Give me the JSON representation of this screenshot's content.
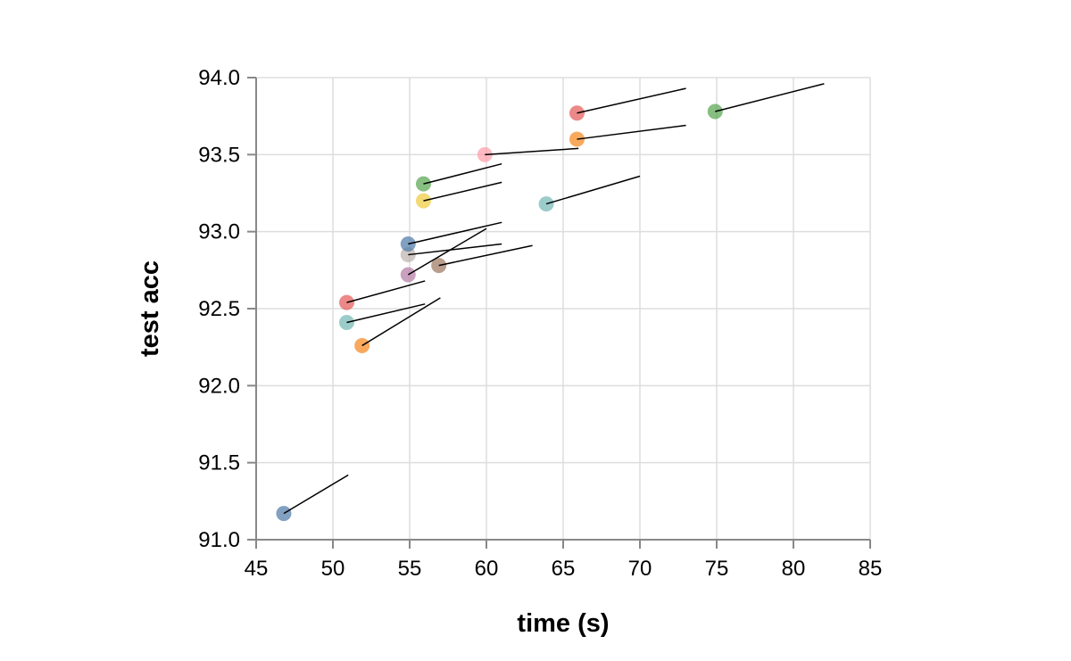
{
  "chart_data": {
    "type": "scatter",
    "title": "",
    "xlabel": "time (s)",
    "ylabel": "test acc",
    "xlim": [
      45,
      85
    ],
    "ylim": [
      91.0,
      94.0
    ],
    "x_ticks": [
      45,
      50,
      55,
      60,
      65,
      70,
      75,
      80,
      85
    ],
    "y_ticks": [
      91.0,
      91.5,
      92.0,
      92.5,
      93.0,
      93.5,
      94.0
    ],
    "x_tick_labels": [
      "45",
      "50",
      "55",
      "60",
      "65",
      "70",
      "75",
      "80",
      "85"
    ],
    "y_tick_labels": [
      "91.0",
      "91.5",
      "92.0",
      "92.5",
      "93.0",
      "93.5",
      "94.0"
    ],
    "grid": true,
    "legend": "none",
    "points": [
      {
        "x": 46.8,
        "y": 91.17,
        "color": "#4c78a8",
        "line_end": [
          51.0,
          91.42
        ]
      },
      {
        "x": 50.9,
        "y": 92.41,
        "color": "#72b7b2",
        "line_end": [
          56.0,
          92.53
        ]
      },
      {
        "x": 51.9,
        "y": 92.26,
        "color": "#f58518",
        "line_end": [
          57.0,
          92.57
        ]
      },
      {
        "x": 50.9,
        "y": 92.54,
        "color": "#e45756",
        "line_end": [
          56.0,
          92.68
        ]
      },
      {
        "x": 54.9,
        "y": 92.72,
        "color": "#b279a2",
        "line_end": [
          60.0,
          93.02
        ]
      },
      {
        "x": 54.9,
        "y": 92.85,
        "color": "#bab0ac",
        "line_end": [
          61.0,
          92.92
        ]
      },
      {
        "x": 54.9,
        "y": 92.92,
        "color": "#4c78a8",
        "line_end": [
          61.0,
          93.06
        ]
      },
      {
        "x": 56.9,
        "y": 92.78,
        "color": "#9d755d",
        "line_end": [
          63.0,
          92.91
        ]
      },
      {
        "x": 55.9,
        "y": 93.2,
        "color": "#eeca3b",
        "line_end": [
          61.0,
          93.32
        ]
      },
      {
        "x": 55.9,
        "y": 93.31,
        "color": "#54a24b",
        "line_end": [
          61.0,
          93.44
        ]
      },
      {
        "x": 59.9,
        "y": 93.5,
        "color": "#ff9da6",
        "line_end": [
          66.0,
          93.54
        ]
      },
      {
        "x": 63.9,
        "y": 93.18,
        "color": "#72b7b2",
        "line_end": [
          70.0,
          93.36
        ]
      },
      {
        "x": 65.9,
        "y": 93.6,
        "color": "#f58518",
        "line_end": [
          73.0,
          93.69
        ]
      },
      {
        "x": 65.9,
        "y": 93.77,
        "color": "#e45756",
        "line_end": [
          73.0,
          93.93
        ]
      },
      {
        "x": 74.9,
        "y": 93.78,
        "color": "#54a24b",
        "line_end": [
          82.0,
          93.96
        ]
      }
    ]
  }
}
